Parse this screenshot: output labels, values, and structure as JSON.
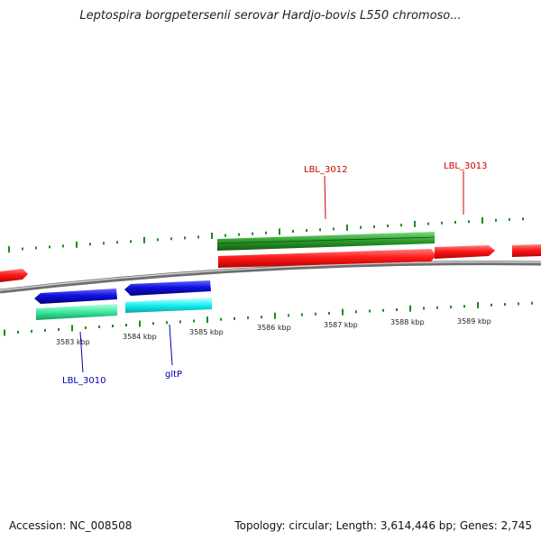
{
  "title": "Leptospira borgpetersenii serovar Hardjo-bovis L550 chromoso...",
  "footer": {
    "accession": "Accession: NC_008508",
    "summary": "Topology: circular; Length: 3,614,446 bp; Genes: 2,745"
  },
  "ticks": [
    "3583 kbp",
    "3584 kbp",
    "3585 kbp",
    "3586 kbp",
    "3587 kbp",
    "3588 kbp",
    "3589 kbp"
  ],
  "gene_labels": [
    {
      "text": "LBL_3012",
      "color": "#cc0000"
    },
    {
      "text": "LBL_3013",
      "color": "#cc0000"
    },
    {
      "text": "LBL_3010",
      "color": "#0000aa"
    },
    {
      "text": "gltP",
      "color": "#0000aa"
    }
  ],
  "colors": {
    "cds_forward": "#ff1a1a",
    "cds_reverse": "#1010e0",
    "gene_track_dark": "#2a9a2a",
    "gene_track_light_green": "#3ee8a0",
    "gene_track_cyan": "#18f0f0",
    "gc_marks": "#1f8a1f",
    "backbone": "#8a8a8a"
  }
}
